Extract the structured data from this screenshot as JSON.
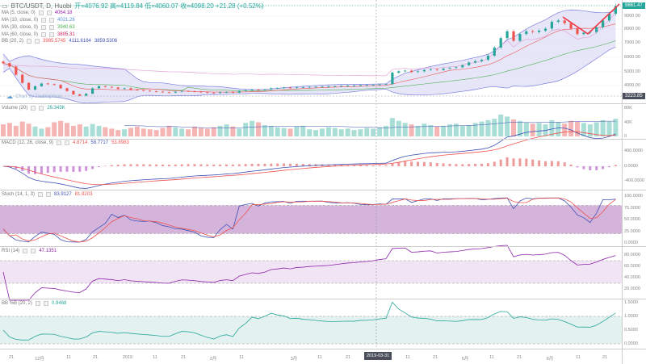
{
  "header": {
    "symbol": "BTC/USDT, D, Huobi",
    "ohlc": "开=4076.92  高=4119.84  低=4060.07  收=4098.20  +21.28 (+0.52%)"
  },
  "indicators": {
    "ma5": {
      "label": "MA (5, close, 0)",
      "value": "4064.18",
      "color": "#9c27b0"
    },
    "ma10": {
      "label": "MA (10, close, 0)",
      "value": "4021.26",
      "color": "#5c8dd6"
    },
    "ma30": {
      "label": "MA (30, close, 0)",
      "value": "3940.63",
      "color": "#4caf50"
    },
    "ma60": {
      "label": "MA (60, close, 0)",
      "value": "3805.31",
      "color": "#c2185b"
    },
    "bb": {
      "label": "BB (20, 2)",
      "v1": "3985.5745",
      "v2": "4111.6184",
      "v3": "3859.5306"
    },
    "volume": {
      "label": "Volume (20)",
      "value": "26.343K"
    },
    "macd": {
      "label": "MACD (12, 26, close, 9)",
      "v1": "4.8714",
      "v2": "58.7717",
      "v3": "53.8983"
    },
    "stoch": {
      "label": "Stoch (14, 1, 3)",
      "v1": "83.9127",
      "v2": "81.9203"
    },
    "rsi": {
      "label": "RSI (14)",
      "value": "47.1351"
    },
    "bbpb": {
      "label": "BB %B (20, 2)",
      "value": "0.9468"
    }
  },
  "watermark": "Chart by TradingView",
  "price_axis": {
    "last_price": "9861.47",
    "crosshair_price": "3223.85",
    "ticks": [
      "9000.00",
      "8000.00",
      "7000.00",
      "6000.00",
      "5000.00",
      "4000.00"
    ]
  },
  "volume_axis": [
    "80K",
    "40K",
    "0"
  ],
  "macd_axis": [
    "400.0000",
    "0.0000",
    "-400.0000"
  ],
  "stoch_axis": [
    "100.0000",
    "75.0000",
    "50.0000",
    "25.0000",
    "0.0000"
  ],
  "rsi_axis": [
    "80.0000",
    "60.0000",
    "40.0000",
    "20.0000"
  ],
  "bbpb_axis": [
    "1.5000",
    "1.0000",
    "0.5000",
    "0.0000"
  ],
  "time_axis": {
    "labels": [
      "21",
      "12月",
      "11",
      "21",
      "2019",
      "11",
      "21",
      "2月",
      "11",
      "3月",
      "11",
      "21",
      "11",
      "21",
      "5月",
      "11",
      "21",
      "6月",
      "11",
      "21"
    ],
    "crosshair_date": "2019-03-31"
  },
  "colors": {
    "up": "#26a69a",
    "down": "#ef5350",
    "bb_fill": "#dcdcf5",
    "stoch_band": "#c79bd0",
    "rsi_band": "#f1e4f4",
    "bbpb_band": "#e3f2f0"
  },
  "chart_data": {
    "type": "candlestick",
    "symbol": "BTC/USDT",
    "interval": "D",
    "exchange": "Huobi",
    "ylim": [
      3000,
      10000
    ],
    "close": [
      5650,
      5400,
      4800,
      4200,
      3700,
      3950,
      4150,
      4100,
      4050,
      3800,
      3600,
      3350,
      3250,
      3400,
      3800,
      3950,
      3900,
      3850,
      3750,
      3800,
      3700,
      3650,
      3620,
      3580,
      3550,
      3500,
      3480,
      3550,
      3600,
      3580,
      3550,
      3500,
      3480,
      3450,
      3500,
      3520,
      3480,
      3600,
      3650,
      3700,
      3680,
      3720,
      3800,
      3820,
      3850,
      3830,
      3870,
      3880,
      3900,
      3910,
      3920,
      3930,
      3950,
      3970,
      3990,
      4000,
      4020,
      4030,
      4050,
      4080,
      4100,
      4950,
      5050,
      5100,
      5000,
      5050,
      5150,
      5200,
      5150,
      5250,
      5300,
      5350,
      5500,
      5700,
      5800,
      5900,
      6200,
      6800,
      7500,
      8000,
      7300,
      7800,
      8000,
      7950,
      8050,
      8200,
      8700,
      8800,
      8600,
      8200,
      7800,
      7900,
      7950,
      8300,
      8800,
      9300,
      9861
    ],
    "volume_k": [
      34,
      38,
      30,
      42,
      36,
      28,
      22,
      26,
      40,
      44,
      38,
      30,
      34,
      28,
      35,
      30,
      26,
      22,
      18,
      20,
      24,
      28,
      22,
      20,
      18,
      24,
      30,
      26,
      22,
      20,
      28,
      24,
      22,
      26,
      30,
      34,
      28,
      22,
      38,
      44,
      40,
      32,
      30,
      26,
      24,
      22,
      28,
      30,
      20,
      18,
      22,
      26,
      24,
      20,
      22,
      18,
      20,
      24,
      22,
      26,
      30,
      52,
      44,
      38,
      34,
      30,
      36,
      32,
      28,
      30,
      34,
      36,
      30,
      32,
      38,
      42,
      46,
      50,
      62,
      56,
      48,
      44,
      40,
      36,
      38,
      34,
      46,
      40,
      36,
      44,
      42,
      38,
      34,
      40,
      46,
      42,
      50
    ]
  }
}
